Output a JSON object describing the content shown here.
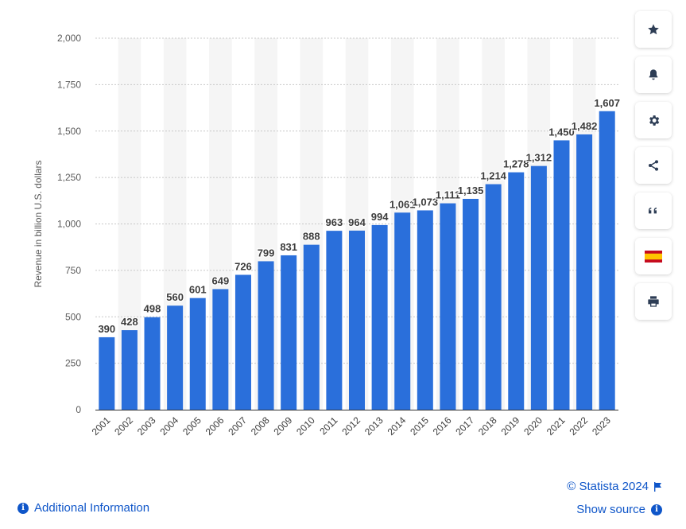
{
  "chart_data": {
    "type": "bar",
    "ylabel": "Revenue in billion U.S. dollars",
    "categories": [
      "2001",
      "2002",
      "2003",
      "2004",
      "2005",
      "2006",
      "2007",
      "2008",
      "2009",
      "2010",
      "2011",
      "2012",
      "2013",
      "2014",
      "2015",
      "2016",
      "2017",
      "2018",
      "2019",
      "2020",
      "2021",
      "2022",
      "2023"
    ],
    "values": [
      390,
      428,
      498,
      560,
      601,
      649,
      726,
      799,
      831,
      888,
      963,
      964,
      994,
      1061,
      1073,
      1111,
      1135,
      1214,
      1278,
      1312,
      1450,
      1482,
      1607
    ],
    "value_labels": [
      "390",
      "428",
      "498",
      "560",
      "601",
      "649",
      "726",
      "799",
      "831",
      "888",
      "963",
      "964",
      "994",
      "1,061",
      "1,073",
      "1,111",
      "1,135",
      "1,214",
      "1,278",
      "1,312",
      "1,450",
      "1,482",
      "1,607"
    ],
    "ylim": [
      0,
      2000
    ],
    "yticks": [
      0,
      250,
      500,
      750,
      1000,
      1250,
      1500,
      1750,
      2000
    ],
    "ytick_labels": [
      "0",
      "250",
      "500",
      "750",
      "1,000",
      "1,250",
      "1,500",
      "1,750",
      "2,000"
    ],
    "grid": true,
    "bar_color": "#2a6fdb"
  },
  "toolbar": {
    "buttons": [
      {
        "name": "star-button",
        "icon": "star-icon"
      },
      {
        "name": "notification-button",
        "icon": "bell-icon"
      },
      {
        "name": "settings-button",
        "icon": "gear-icon"
      },
      {
        "name": "share-button",
        "icon": "share-icon"
      },
      {
        "name": "cite-button",
        "icon": "quote-icon"
      },
      {
        "name": "language-button",
        "icon": "spain-flag-icon"
      },
      {
        "name": "print-button",
        "icon": "printer-icon"
      }
    ]
  },
  "footer": {
    "additional_info": "Additional Information",
    "copyright": "© Statista 2024",
    "show_source": "Show source"
  },
  "colors": {
    "accent": "#0f56c9",
    "icon": "#2d3d55",
    "text_axis": "#5a5a5a",
    "label": "#3c3c3c"
  }
}
